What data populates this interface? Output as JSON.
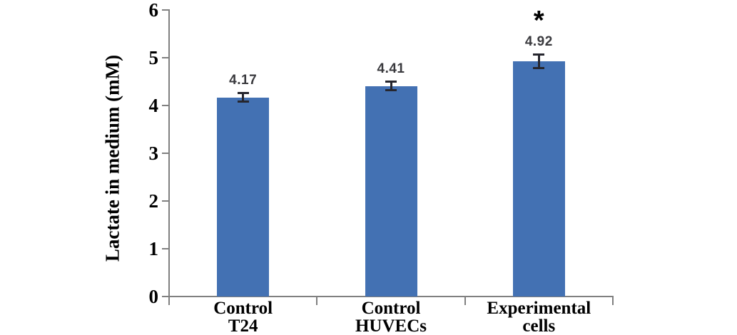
{
  "chart_data": {
    "type": "bar",
    "ylabel": "Lactate in medium (mM)",
    "xlabel": "",
    "ylim": [
      0,
      6
    ],
    "yticks": [
      0,
      1,
      2,
      3,
      4,
      5,
      6
    ],
    "categories": [
      {
        "lines": [
          "Control",
          "T24"
        ]
      },
      {
        "lines": [
          "Control",
          "HUVECs"
        ]
      },
      {
        "lines": [
          "Experimental",
          "cells"
        ]
      }
    ],
    "values": [
      4.17,
      4.41,
      4.92
    ],
    "errors": [
      0.1,
      0.1,
      0.15
    ],
    "data_labels": [
      "4.17",
      "4.41",
      "4.92"
    ],
    "annotations": [
      {
        "category_index": 2,
        "text": "*"
      }
    ],
    "grid": false,
    "legend": false,
    "colors": {
      "bar": "#4371B3",
      "axis": "#808080",
      "error_bar": "#26262e",
      "data_label": "#3a3a3e",
      "text": "#000000",
      "background": "#ffffff"
    }
  }
}
